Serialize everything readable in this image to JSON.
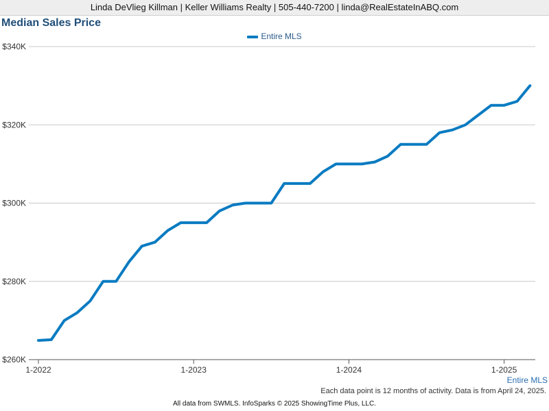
{
  "header": {
    "contact_line": "Linda DeVlieg Killman | Keller Williams Realty | 505-440-7200 | linda@RealEstateInABQ.com"
  },
  "chart_data": {
    "type": "line",
    "title": "Median Sales Price",
    "xlabel": "",
    "ylabel": "",
    "ylim": [
      260000,
      340000
    ],
    "y_ticks": [
      {
        "value": 260000,
        "label": "$260K"
      },
      {
        "value": 280000,
        "label": "$280K"
      },
      {
        "value": 300000,
        "label": "$300K"
      },
      {
        "value": 320000,
        "label": "$320K"
      },
      {
        "value": 340000,
        "label": "$340K"
      }
    ],
    "x_tick_labels": [
      "1-2022",
      "1-2023",
      "1-2024",
      "1-2025"
    ],
    "x": [
      "2022-01",
      "2022-02",
      "2022-03",
      "2022-04",
      "2022-05",
      "2022-06",
      "2022-07",
      "2022-08",
      "2022-09",
      "2022-10",
      "2022-11",
      "2022-12",
      "2023-01",
      "2023-02",
      "2023-03",
      "2023-04",
      "2023-05",
      "2023-06",
      "2023-07",
      "2023-08",
      "2023-09",
      "2023-10",
      "2023-11",
      "2023-12",
      "2024-01",
      "2024-02",
      "2024-03",
      "2024-04",
      "2024-05",
      "2024-06",
      "2024-07",
      "2024-08",
      "2024-09",
      "2024-10",
      "2024-11",
      "2024-12",
      "2025-01",
      "2025-02",
      "2025-03"
    ],
    "series": [
      {
        "name": "Entire MLS",
        "color": "#0a7bc1",
        "values": [
          264900,
          265100,
          270000,
          272000,
          275000,
          280000,
          280000,
          285000,
          289000,
          290000,
          293000,
          295000,
          295000,
          295000,
          298000,
          299500,
          300000,
          300000,
          300000,
          305000,
          305000,
          305000,
          308000,
          310000,
          310000,
          310000,
          310500,
          312000,
          315000,
          315000,
          315000,
          318000,
          318700,
          320000,
          322500,
          325000,
          325000,
          326000,
          330000
        ]
      }
    ],
    "grid": true,
    "legend_position": "top-center",
    "axis_series_label": "Entire MLS"
  },
  "footnote": "Each data point is 12 months of activity. Data is from April 24, 2025.",
  "source": "All data from SWMLS. InfoSparks © 2025 ShowingTime Plus, LLC."
}
